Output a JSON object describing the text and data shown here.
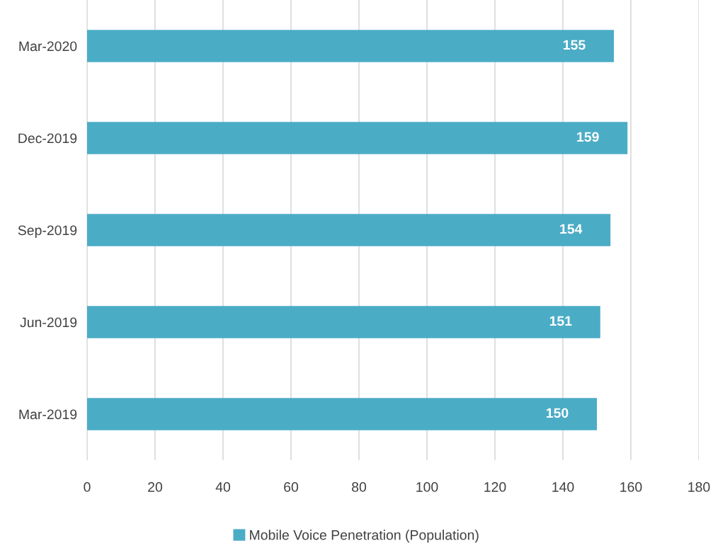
{
  "chart_data": {
    "type": "bar",
    "orientation": "horizontal",
    "categories": [
      "Mar-2020",
      "Dec-2019",
      "Sep-2019",
      "Jun-2019",
      "Mar-2019"
    ],
    "series": [
      {
        "name": "Mobile Voice Penetration (Population)",
        "color": "#4bacc6",
        "values": [
          155,
          159,
          154,
          151,
          150
        ]
      }
    ],
    "xlim": [
      0,
      180
    ],
    "xticks": [
      0,
      20,
      40,
      60,
      80,
      100,
      120,
      140,
      160,
      180
    ],
    "grid": "x",
    "legend": "bottom",
    "data_labels": true
  }
}
